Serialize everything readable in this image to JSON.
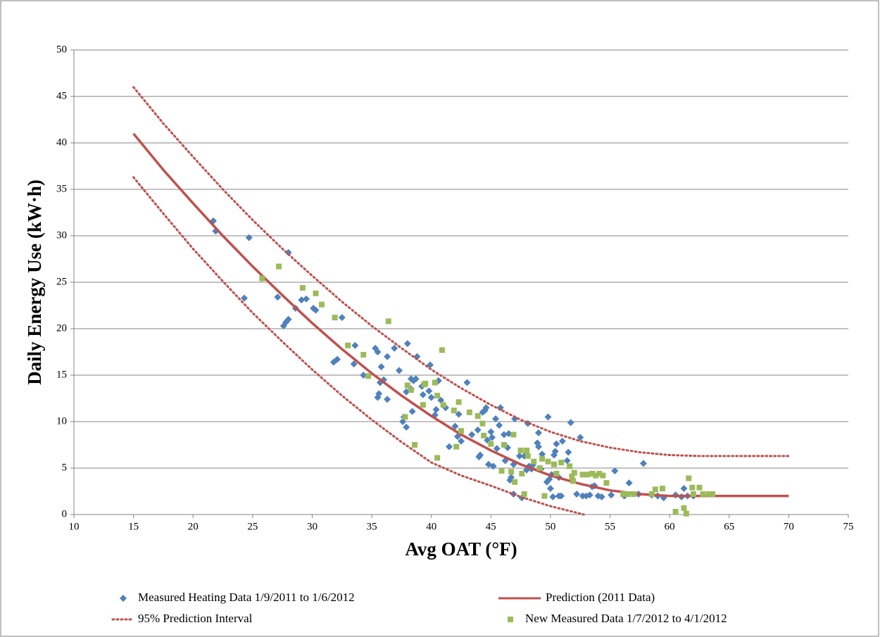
{
  "chart_data": {
    "type": "scatter",
    "x_label": "Avg OAT (°F)",
    "y_label": "Daily Energy Use (kW·h)",
    "xlim": [
      10,
      75
    ],
    "xticks": [
      10,
      15,
      20,
      25,
      30,
      35,
      40,
      45,
      50,
      55,
      60,
      65,
      70,
      75
    ],
    "ylim": [
      0,
      50
    ],
    "yticks": [
      0,
      5,
      10,
      15,
      20,
      25,
      30,
      35,
      40,
      45,
      50
    ],
    "grid": true,
    "legend": "bottom",
    "series": [
      {
        "name": "Measured Heating Data 1/9/2011 to 1/6/2012",
        "color": "#4f81bd",
        "style": "scatter",
        "marker": "diamond",
        "x": [
          21.7,
          21.9,
          24.3,
          24.7,
          27.1,
          27.6,
          27.8,
          28.0,
          28.0,
          28.6,
          29.1,
          29.5,
          30.1,
          30.3,
          31.8,
          32.1,
          32.5,
          33.6,
          33.5,
          34.3,
          35.3,
          35.5,
          35.5,
          35.6,
          35.7,
          35.8,
          36.0,
          36.3,
          36.3,
          36.9,
          37.3,
          37.6,
          37.7,
          37.9,
          37.9,
          38.0,
          38.3,
          38.4,
          38.3,
          38.5,
          38.7,
          38.8,
          39.2,
          39.3,
          39.8,
          39.9,
          40.0,
          40.3,
          40.4,
          40.6,
          40.8,
          41.2,
          41.5,
          42.0,
          42.2,
          42.3,
          42.5,
          43.0,
          43.4,
          43.9,
          44.0,
          44.1,
          44.3,
          44.5,
          44.6,
          44.7,
          44.8,
          45.0,
          45.1,
          45.2,
          45.4,
          45.5,
          45.7,
          45.8,
          46.1,
          46.2,
          46.4,
          46.5,
          46.6,
          46.7,
          46.9,
          46.9,
          47.0,
          47.4,
          47.6,
          47.8,
          48.0,
          48.1,
          48.2,
          48.4,
          48.5,
          48.9,
          49.0,
          49.0,
          49.2,
          49.3,
          49.7,
          49.8,
          49.9,
          50.0,
          50.1,
          50.2,
          50.3,
          50.4,
          50.5,
          50.7,
          50.7,
          50.9,
          51.0,
          51.4,
          51.5,
          51.7,
          52.2,
          52.5,
          52.7,
          53.0,
          53.3,
          53.5,
          53.7,
          54.0,
          54.3,
          55.1,
          55.4,
          56.2,
          56.6,
          57.4,
          57.8,
          58.5,
          59.0,
          59.5,
          60.5,
          61.0,
          61.2,
          61.5,
          62.0
        ],
        "values": [
          31.6,
          30.5,
          23.3,
          29.8,
          23.4,
          20.3,
          20.7,
          21.0,
          28.2,
          22.2,
          23.1,
          23.2,
          22.2,
          22.0,
          16.4,
          16.7,
          21.2,
          18.2,
          16.2,
          15.0,
          17.9,
          17.5,
          12.6,
          13.0,
          14.2,
          15.9,
          14.5,
          12.4,
          17.0,
          17.9,
          15.5,
          10.0,
          10.5,
          9.4,
          13.2,
          18.4,
          13.5,
          11.1,
          14.6,
          14.4,
          14.6,
          17.0,
          13.8,
          12.9,
          13.3,
          16.1,
          12.6,
          10.7,
          11.3,
          14.4,
          12.3,
          11.5,
          7.3,
          9.5,
          8.4,
          10.8,
          7.9,
          14.2,
          8.6,
          9.1,
          6.2,
          6.4,
          11.0,
          11.2,
          11.5,
          8.0,
          5.4,
          8.9,
          8.3,
          5.2,
          10.3,
          7.1,
          9.6,
          11.5,
          8.6,
          5.8,
          7.2,
          8.7,
          3.7,
          4.0,
          5.4,
          2.2,
          10.3,
          6.3,
          1.8,
          6.3,
          4.8,
          9.8,
          5.2,
          4.9,
          5.3,
          7.7,
          7.3,
          8.8,
          4.9,
          6.5,
          3.5,
          10.5,
          3.8,
          2.8,
          4.3,
          1.9,
          6.4,
          6.8,
          7.6,
          2.0,
          4.0,
          2.0,
          7.9,
          5.8,
          6.7,
          9.9,
          2.2,
          8.3,
          2.0,
          2.0,
          2.1,
          3.0,
          3.1,
          2.0,
          1.9,
          2.1,
          4.7,
          2.0,
          3.4,
          2.2,
          5.5,
          2.1,
          2.0,
          1.8,
          2.1,
          1.9,
          2.8,
          2.0,
          2.0
        ]
      },
      {
        "name": "Prediction (2011 Data)",
        "color": "#c0504d",
        "style": "line",
        "dash": false,
        "x": [
          15,
          17.5,
          20,
          22.5,
          25,
          27.5,
          30,
          32.5,
          35,
          37.5,
          40,
          42.5,
          45,
          47.5,
          50,
          52.5,
          55,
          57.5,
          60,
          62.5,
          65,
          70
        ],
        "values": [
          41.0,
          37.1,
          33.5,
          30.0,
          26.7,
          23.6,
          20.6,
          17.8,
          15.2,
          12.8,
          10.6,
          8.6,
          6.9,
          5.4,
          4.2,
          3.3,
          2.6,
          2.2,
          2.0,
          2.0,
          2.0,
          2.0
        ]
      },
      {
        "name": "95% Prediction Interval",
        "color": "#c0504d",
        "style": "line",
        "dash": true,
        "x": [
          15,
          17.5,
          20,
          22.5,
          25,
          27.5,
          30,
          32.5,
          35,
          37.5,
          40,
          42.5,
          45,
          47.5,
          50,
          52.8,
          null,
          15,
          17.5,
          20,
          22.5,
          25,
          27.5,
          30,
          32.5,
          35,
          37.5,
          40,
          42.5,
          45,
          47.5,
          50,
          52.5,
          55,
          57.5,
          60,
          62.5,
          65,
          70
        ],
        "values": [
          36.3,
          32.4,
          28.6,
          25.1,
          21.7,
          18.6,
          15.6,
          12.8,
          10.2,
          7.8,
          5.6,
          4.2,
          3.1,
          1.9,
          0.9,
          0,
          null,
          46.0,
          42.1,
          38.5,
          35.0,
          31.7,
          28.6,
          25.7,
          22.9,
          20.3,
          17.9,
          15.6,
          13.6,
          11.8,
          10.2,
          8.9,
          7.9,
          7.2,
          6.7,
          6.4,
          6.3,
          6.3,
          6.3
        ]
      },
      {
        "name": "New Measured Data 1/7/2012 to 4/1/2012",
        "color": "#9bbb59",
        "style": "scatter",
        "marker": "square",
        "x": [
          25.8,
          27.2,
          29.2,
          30.3,
          30.8,
          31.9,
          33.0,
          34.3,
          34.7,
          36.4,
          37.8,
          38.0,
          38.3,
          38.6,
          39.3,
          39.4,
          39.5,
          40.3,
          40.5,
          40.5,
          40.9,
          41.0,
          41.9,
          42.1,
          42.3,
          42.5,
          43.2,
          43.9,
          44.3,
          44.4,
          45.0,
          45.9,
          46.1,
          46.7,
          46.9,
          47.0,
          47.5,
          47.6,
          47.8,
          48.0,
          48.1,
          48.6,
          49.1,
          49.3,
          49.5,
          49.8,
          50.3,
          50.5,
          50.9,
          51.6,
          51.8,
          51.9,
          52.0,
          52.7,
          53.1,
          53.5,
          53.8,
          54.1,
          54.4,
          54.7,
          56.1,
          56.5,
          57.0,
          58.5,
          58.8,
          59.4,
          60.5,
          61.2,
          61.4,
          61.6,
          61.9,
          62.0,
          62.5,
          62.8,
          63.3,
          63.6
        ],
        "values": [
          25.4,
          26.7,
          24.4,
          23.8,
          22.6,
          21.2,
          18.2,
          17.2,
          14.9,
          20.8,
          10.5,
          13.9,
          13.4,
          7.5,
          11.8,
          14.0,
          14.1,
          14.2,
          12.8,
          6.1,
          17.7,
          11.8,
          11.2,
          7.3,
          12.1,
          9.0,
          11.0,
          10.6,
          9.8,
          8.5,
          7.6,
          4.7,
          7.5,
          4.6,
          8.6,
          3.5,
          6.9,
          4.4,
          2.2,
          6.9,
          6.3,
          5.7,
          5.0,
          6.0,
          2.0,
          5.7,
          5.4,
          4.4,
          5.6,
          5.2,
          4.1,
          3.6,
          4.5,
          4.3,
          4.3,
          4.4,
          4.2,
          4.4,
          4.2,
          3.4,
          2.2,
          2.2,
          2.2,
          2.2,
          2.7,
          2.8,
          0.3,
          0.7,
          0.1,
          3.9,
          2.9,
          2.2,
          2.9,
          2.2,
          2.2,
          2.2
        ]
      }
    ]
  }
}
